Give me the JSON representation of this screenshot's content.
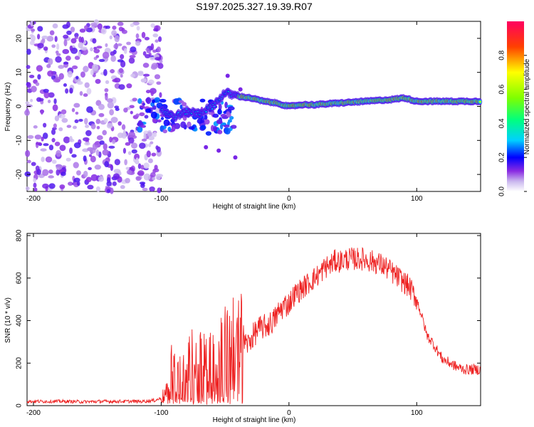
{
  "title": "S197.2025.327.19.39.R07",
  "colorbar": {
    "label": "Normalized spectral amplitude",
    "ticks": [
      "0.0",
      "0.2",
      "0.4",
      "0.6",
      "0.8"
    ],
    "range": [
      0,
      1
    ]
  },
  "chart_data": [
    {
      "type": "heatmap",
      "xlabel": "Height of straight line (km)",
      "ylabel": "Frequency (Hz)",
      "xlim": [
        -205,
        150
      ],
      "ylim": [
        -25,
        25
      ],
      "xticks": [
        -200,
        -100,
        0,
        100
      ],
      "yticks": [
        -20,
        -10,
        0,
        10,
        20
      ],
      "description_regions": [
        {
          "x_range": [
            -205,
            -100
          ],
          "kind": "noise",
          "amplitude": [
            0.0,
            0.2
          ]
        },
        {
          "x_range": [
            -100,
            -40
          ],
          "kind": "scattered",
          "amplitude": [
            0.1,
            0.35
          ]
        },
        {
          "x_range": [
            -40,
            150
          ],
          "kind": "carrier",
          "amplitude": [
            0.3,
            0.95
          ]
        }
      ],
      "carrier_frequency_hz": [
        [
          -100,
          -1
        ],
        [
          -90,
          -3
        ],
        [
          -80,
          -1.5
        ],
        [
          -70,
          -2
        ],
        [
          -60,
          0
        ],
        [
          -50,
          4
        ],
        [
          -40,
          3
        ],
        [
          -30,
          2.5
        ],
        [
          -20,
          1.5
        ],
        [
          -10,
          1
        ],
        [
          0,
          0
        ],
        [
          10,
          0.5
        ],
        [
          20,
          0.5
        ],
        [
          40,
          1
        ],
        [
          60,
          1.5
        ],
        [
          80,
          2
        ],
        [
          90,
          2.5
        ],
        [
          100,
          1.5
        ],
        [
          120,
          1.5
        ],
        [
          150,
          1.5
        ]
      ]
    },
    {
      "type": "line",
      "xlabel": "Height of straight line (km)",
      "ylabel": "SNR (10 * v/v)",
      "xlim": [
        -205,
        150
      ],
      "ylim": [
        0,
        810
      ],
      "xticks": [
        -200,
        -100,
        0,
        100
      ],
      "yticks": [
        0,
        200,
        400,
        600,
        800
      ],
      "series": [
        {
          "name": "SNR",
          "color": "#ee2222",
          "x": [
            -205,
            -190,
            -175,
            -160,
            -145,
            -130,
            -115,
            -105,
            -100,
            -95,
            -92,
            -88,
            -84,
            -80,
            -76,
            -72,
            -68,
            -64,
            -60,
            -56,
            -52,
            -48,
            -44,
            -40,
            -36,
            -32,
            -28,
            -24,
            -20,
            -16,
            -12,
            -8,
            -4,
            0,
            4,
            8,
            12,
            16,
            20,
            24,
            28,
            32,
            36,
            40,
            46,
            52,
            58,
            64,
            70,
            76,
            82,
            88,
            94,
            100,
            104,
            108,
            112,
            116,
            120,
            126,
            132,
            138,
            144,
            150
          ],
          "values": [
            20,
            20,
            20,
            18,
            20,
            20,
            20,
            25,
            35,
            60,
            160,
            110,
            150,
            130,
            230,
            150,
            240,
            180,
            260,
            200,
            280,
            240,
            280,
            260,
            300,
            290,
            330,
            360,
            370,
            380,
            400,
            440,
            470,
            480,
            520,
            540,
            560,
            580,
            600,
            620,
            650,
            660,
            680,
            680,
            690,
            690,
            690,
            680,
            670,
            650,
            620,
            590,
            560,
            500,
            420,
            330,
            300,
            260,
            220,
            200,
            180,
            170,
            170,
            170
          ]
        }
      ]
    }
  ]
}
